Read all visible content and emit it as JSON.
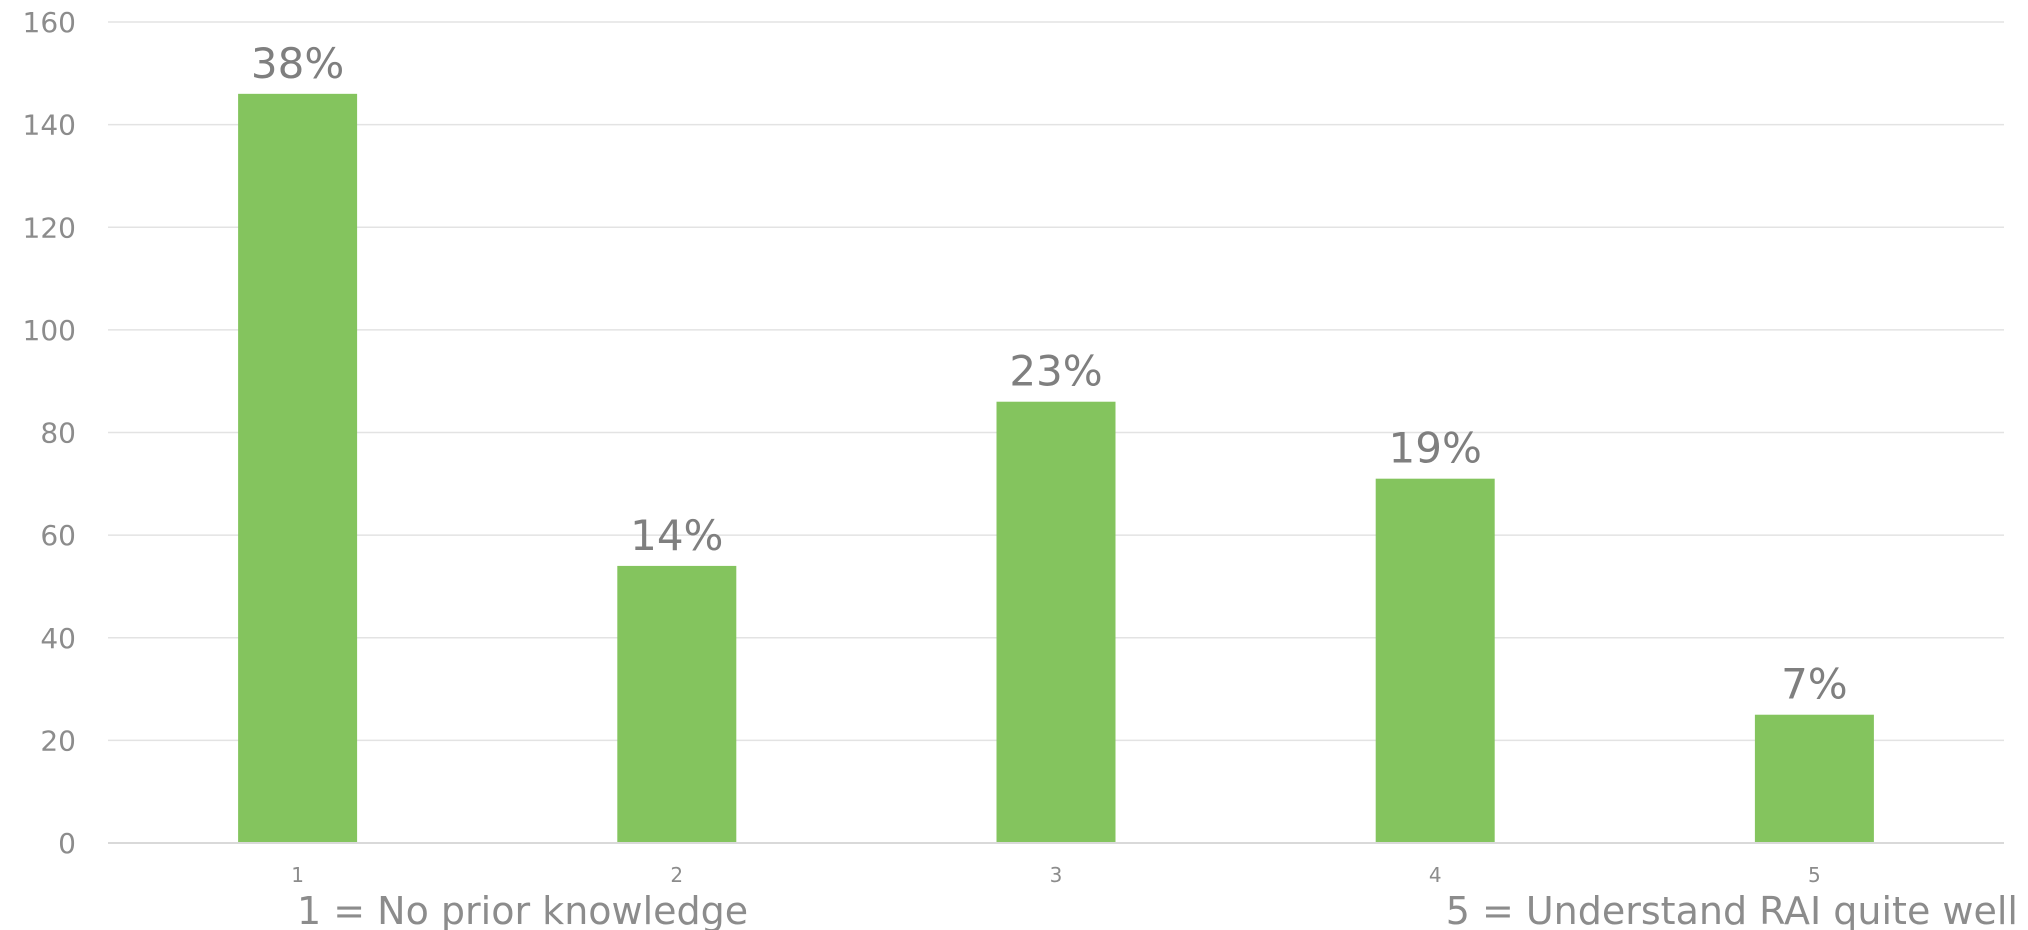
{
  "chart_data": {
    "type": "bar",
    "categories": [
      "1",
      "2",
      "3",
      "4",
      "5"
    ],
    "values": [
      146,
      54,
      86,
      71,
      25
    ],
    "data_labels": [
      "38%",
      "14%",
      "23%",
      "19%",
      "7%"
    ],
    "ylim": [
      0,
      160
    ],
    "yticks": [
      "0",
      "20",
      "40",
      "60",
      "80",
      "100",
      "120",
      "140",
      "160"
    ],
    "grid": true,
    "legend": "none",
    "bar_color": "#84c45e",
    "annotations": {
      "left": "1 = No prior knowledge",
      "right": "5 = Understand RAI quite well"
    }
  }
}
